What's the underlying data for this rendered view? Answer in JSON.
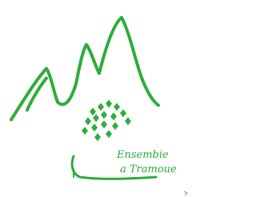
{
  "logo": {
    "line1": "Ensembie",
    "line2": "a Tramoue"
  }
}
